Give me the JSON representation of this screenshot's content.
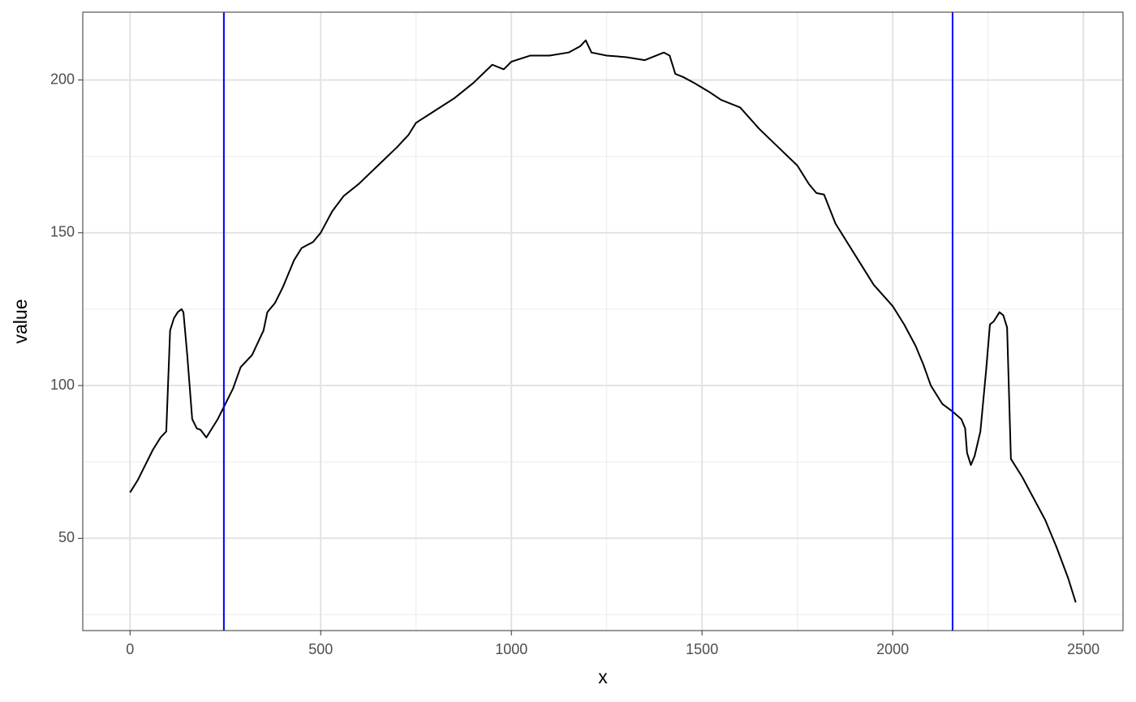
{
  "chart_data": {
    "type": "line",
    "x_label": "x",
    "y_label": "value",
    "x": [
      0,
      20,
      40,
      60,
      80,
      95,
      105,
      115,
      125,
      135,
      140,
      150,
      163,
      175,
      185,
      200,
      215,
      230,
      246,
      270,
      290,
      320,
      350,
      360,
      380,
      400,
      430,
      450,
      480,
      500,
      530,
      560,
      600,
      650,
      700,
      730,
      750,
      800,
      850,
      900,
      950,
      980,
      1000,
      1050,
      1100,
      1150,
      1180,
      1195,
      1210,
      1250,
      1300,
      1350,
      1380,
      1400,
      1415,
      1430,
      1450,
      1480,
      1520,
      1550,
      1600,
      1650,
      1700,
      1750,
      1780,
      1800,
      1820,
      1850,
      1900,
      1950,
      2000,
      2030,
      2060,
      2080,
      2100,
      2130,
      2157,
      2180,
      2190,
      2195,
      2205,
      2215,
      2230,
      2245,
      2255,
      2265,
      2280,
      2290,
      2300,
      2310,
      2340,
      2370,
      2400,
      2430,
      2460,
      2480
    ],
    "values": [
      65,
      69,
      74,
      79,
      83,
      85,
      118,
      122,
      124,
      125,
      124,
      110,
      89,
      86,
      85.5,
      83,
      86,
      89,
      93,
      99,
      106,
      110,
      118,
      124,
      127,
      132,
      141,
      145,
      147,
      150,
      157,
      162,
      166,
      172,
      178,
      182,
      186,
      190,
      194,
      199,
      205,
      203.5,
      206,
      208,
      208,
      209,
      211,
      213,
      209,
      208,
      207.5,
      206.5,
      208,
      209,
      208,
      202,
      201,
      199,
      196,
      193.5,
      191,
      184,
      178,
      172,
      166,
      163,
      162.5,
      153,
      143,
      133,
      126,
      120,
      113,
      107,
      100,
      94,
      91.5,
      89,
      86,
      78,
      74,
      77,
      85,
      105,
      120,
      121,
      124,
      123,
      119,
      76,
      70,
      63,
      56,
      47,
      37,
      29
    ],
    "color": "#000000",
    "vlines": [
      {
        "x": 246,
        "color": "#0000ff"
      },
      {
        "x": 2157,
        "color": "#0000ff"
      }
    ],
    "xlim": [
      -124,
      2604
    ],
    "ylim": [
      19.8,
      222.2
    ],
    "xticks": [
      0,
      500,
      1000,
      1500,
      2000,
      2500
    ],
    "yticks": [
      50,
      100,
      150,
      200
    ],
    "x_minor_grid": [
      250,
      750,
      1250,
      1750,
      2250
    ],
    "y_minor_grid": [
      25,
      75,
      125,
      175
    ],
    "grid": true
  }
}
